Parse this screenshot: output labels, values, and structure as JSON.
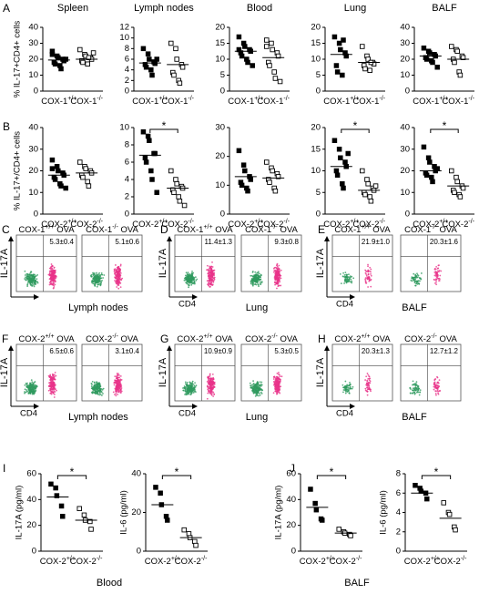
{
  "chart_data": [
    {
      "type": "dot",
      "panel": "A",
      "title": "Spleen",
      "ylabel": "% IL-17+CD4+ cells",
      "categories": [
        "COX-1+/+",
        "COX-1-/-"
      ],
      "values": [
        [
          25,
          22,
          21,
          20,
          19,
          18,
          17,
          16,
          14,
          20,
          23
        ],
        [
          26,
          23,
          22,
          21,
          20,
          19,
          18,
          17,
          21,
          24
        ]
      ],
      "means": [
        19.5,
        20
      ],
      "ylim": [
        0,
        40
      ],
      "yticks": [
        0,
        10,
        20,
        30,
        40
      ]
    },
    {
      "type": "dot",
      "title": "Lymph nodes",
      "categories": [
        "COX-1+/+",
        "COX-1-/-"
      ],
      "values": [
        [
          8,
          7,
          6,
          5.5,
          5.2,
          5,
          4.5,
          4,
          3,
          6
        ],
        [
          9,
          8,
          6,
          5,
          4.5,
          3.5,
          3,
          2,
          1.5
        ]
      ],
      "means": [
        5.3,
        5
      ],
      "ylim": [
        0,
        12
      ],
      "yticks": [
        0,
        2,
        4,
        6,
        8,
        10,
        12
      ]
    },
    {
      "type": "dot",
      "title": "Blood",
      "categories": [
        "COX-1+/+",
        "COX-1-/-"
      ],
      "values": [
        [
          17,
          15,
          14,
          13,
          12.5,
          12,
          11,
          10,
          9,
          8,
          13
        ],
        [
          16,
          15,
          13,
          12,
          11,
          9,
          8,
          6,
          4,
          3,
          14
        ]
      ],
      "means": [
        12.5,
        10.5
      ],
      "ylim": [
        0,
        20
      ],
      "yticks": [
        0,
        5,
        10,
        15,
        20
      ]
    },
    {
      "type": "dot",
      "title": "Lung",
      "categories": [
        "COX-1+/+",
        "COX-1-/-"
      ],
      "values": [
        [
          17,
          15,
          13,
          12,
          11,
          8,
          6,
          5,
          16
        ],
        [
          14,
          11,
          10,
          9,
          8.5,
          8,
          7,
          6.5,
          9
        ]
      ],
      "means": [
        11.5,
        9
      ],
      "ylim": [
        0,
        20
      ],
      "yticks": [
        0,
        5,
        10,
        15,
        20
      ]
    },
    {
      "type": "dot",
      "title": "BALF",
      "categories": [
        "COX-1+/+",
        "COX-1-/-"
      ],
      "values": [
        [
          27,
          25,
          24,
          23,
          22,
          21,
          20,
          19,
          18,
          15
        ],
        [
          28,
          26,
          25,
          22,
          21,
          20,
          18,
          12,
          10
        ]
      ],
      "means": [
        22,
        20
      ],
      "ylim": [
        0,
        40
      ],
      "yticks": [
        0,
        10,
        20,
        30,
        40
      ]
    },
    {
      "type": "dot",
      "panel": "B",
      "ylabel": "% IL-17+/CD4+ cells",
      "categories": [
        "COX-2+/+",
        "COX-2-/-"
      ],
      "values": [
        [
          25,
          22,
          20,
          19,
          18,
          17,
          16,
          14,
          13,
          12,
          21
        ],
        [
          24,
          22,
          21,
          20,
          19,
          18,
          17,
          15,
          13
        ]
      ],
      "means": [
        18,
        19
      ],
      "ylim": [
        0,
        40
      ],
      "yticks": [
        0,
        10,
        20,
        30,
        40
      ]
    },
    {
      "type": "dot",
      "categories": [
        "COX-2+/+",
        "COX-2-/-"
      ],
      "values": [
        [
          9.5,
          9,
          8.5,
          7,
          7,
          6.5,
          6,
          5,
          4,
          2.5
        ],
        [
          5,
          4,
          3.5,
          3.2,
          3,
          2.8,
          2.5,
          2,
          1.5,
          1
        ]
      ],
      "means": [
        6.8,
        3
      ],
      "significance": "*",
      "ylim": [
        0,
        10
      ],
      "yticks": [
        0,
        2,
        4,
        6,
        8,
        10
      ]
    },
    {
      "type": "dot",
      "categories": [
        "COX-2+/+",
        "COX-2-/-"
      ],
      "values": [
        [
          22,
          17,
          15,
          13,
          12,
          11,
          10,
          9,
          8
        ],
        [
          18,
          16,
          15,
          14,
          13,
          12,
          11,
          9,
          8
        ]
      ],
      "means": [
        13,
        12.5
      ],
      "ylim": [
        0,
        30
      ],
      "yticks": [
        0,
        10,
        20,
        30
      ]
    },
    {
      "type": "dot",
      "categories": [
        "COX-2+/+",
        "COX-2-/-"
      ],
      "values": [
        [
          17,
          15,
          13,
          12,
          11,
          10,
          9,
          7,
          6,
          14
        ],
        [
          10,
          8,
          7,
          6,
          5.5,
          5,
          4.5,
          4,
          3,
          6.5
        ]
      ],
      "means": [
        11,
        5.5
      ],
      "significance": "*",
      "ylim": [
        0,
        20
      ],
      "yticks": [
        0,
        5,
        10,
        15,
        20
      ]
    },
    {
      "type": "dot",
      "categories": [
        "COX-2+/+",
        "COX-2-/-"
      ],
      "values": [
        [
          31,
          26,
          24,
          22,
          20,
          19,
          18,
          17,
          15,
          21
        ],
        [
          20,
          17,
          15,
          13,
          12,
          11,
          10,
          9,
          8
        ]
      ],
      "means": [
        20,
        13
      ],
      "significance": "*",
      "ylim": [
        0,
        40
      ],
      "yticks": [
        0,
        10,
        20,
        30,
        40
      ]
    },
    {
      "type": "dot",
      "panel": "I",
      "ylabel": "IL-17A (pg/ml)",
      "categories": [
        "COX-2+/+",
        "COX-2-/-"
      ],
      "values": [
        [
          52,
          49,
          43,
          35,
          27
        ],
        [
          33,
          28,
          24,
          23,
          17
        ]
      ],
      "means": [
        42,
        24
      ],
      "significance": "*",
      "ylim": [
        0,
        60
      ],
      "yticks": [
        0,
        20,
        40,
        60
      ]
    },
    {
      "type": "dot",
      "ylabel": "IL-6 (pg/ml)",
      "categories": [
        "COX-2+/+",
        "COX-2-/-"
      ],
      "values": [
        [
          33,
          30,
          24,
          18,
          16
        ],
        [
          11,
          9,
          7,
          5,
          3
        ]
      ],
      "means": [
        24,
        7
      ],
      "significance": "*",
      "ylim": [
        0,
        40
      ],
      "yticks": [
        0,
        20,
        40
      ]
    },
    {
      "type": "dot",
      "panel": "J",
      "ylabel": "IL-17A (pg/ml)",
      "categories": [
        "COX-2+/+",
        "COX-2-/-"
      ],
      "values": [
        [
          48,
          37,
          32,
          25,
          24
        ],
        [
          17,
          15,
          14,
          13,
          12
        ]
      ],
      "means": [
        34,
        14
      ],
      "significance": "*",
      "ylim": [
        0,
        60
      ],
      "yticks": [
        0,
        20,
        40,
        60
      ]
    },
    {
      "type": "dot",
      "ylabel": "IL-6 (pg/ml)",
      "categories": [
        "COX-2+/+",
        "COX-2-/-"
      ],
      "values": [
        [
          6.8,
          6.5,
          6.2,
          6,
          5.4
        ],
        [
          5,
          4,
          3.8,
          2.5,
          2.2
        ]
      ],
      "means": [
        6,
        3.4
      ],
      "significance": "*",
      "ylim": [
        0,
        8
      ],
      "yticks": [
        0,
        2,
        4,
        6,
        8
      ]
    }
  ],
  "bottom_groups": [
    "Blood",
    "BALF"
  ],
  "flow_panels": [
    {
      "panel": "C",
      "tissue": "Lymph nodes",
      "ylabel": "IL-17A",
      "plots": [
        {
          "title": "COX-1+/+ OVA",
          "percent": "5.3±0.4"
        },
        {
          "title": "COX-1-/- OVA",
          "percent": "5.1±0.6"
        }
      ]
    },
    {
      "panel": "D",
      "tissue": "Lung",
      "ylabel": "IL-17A",
      "xlabel": "CD4",
      "plots": [
        {
          "title": "COX-1+/+ OVA",
          "percent": "11.4±1.3"
        },
        {
          "title": "COX-1-/- OVA",
          "percent": "9.3±0.8"
        }
      ]
    },
    {
      "panel": "E",
      "tissue": "BALF",
      "ylabel": "IL-17A",
      "xlabel": "CD4",
      "plots": [
        {
          "title": "COX-1+/+ OVA",
          "percent": "21.9±1.0"
        },
        {
          "title": "COX-1-/- OVA",
          "percent": "20.3±1.6"
        }
      ]
    },
    {
      "panel": "F",
      "tissue": "Lymph nodes",
      "ylabel": "IL-17A",
      "xlabel": "CD4",
      "plots": [
        {
          "title": "COX-2+/+ OVA",
          "percent": "6.5±0.6"
        },
        {
          "title": "COX-2-/- OVA",
          "percent": "3.1±0.4"
        }
      ]
    },
    {
      "panel": "G",
      "tissue": "Lung",
      "ylabel": "IL-17A",
      "xlabel": "CD4",
      "plots": [
        {
          "title": "COX-2+/+ OVA",
          "percent": "10.9±0.9"
        },
        {
          "title": "COX-2-/- OVA",
          "percent": "5.3±0.5"
        }
      ]
    },
    {
      "panel": "H",
      "tissue": "BALF",
      "ylabel": "IL-17A",
      "xlabel": "CD4",
      "plots": [
        {
          "title": "COX-2+/+ OVA",
          "percent": "20.3±1.3"
        },
        {
          "title": "COX-2-/- OVA",
          "percent": "12.7±1.2"
        }
      ]
    }
  ]
}
